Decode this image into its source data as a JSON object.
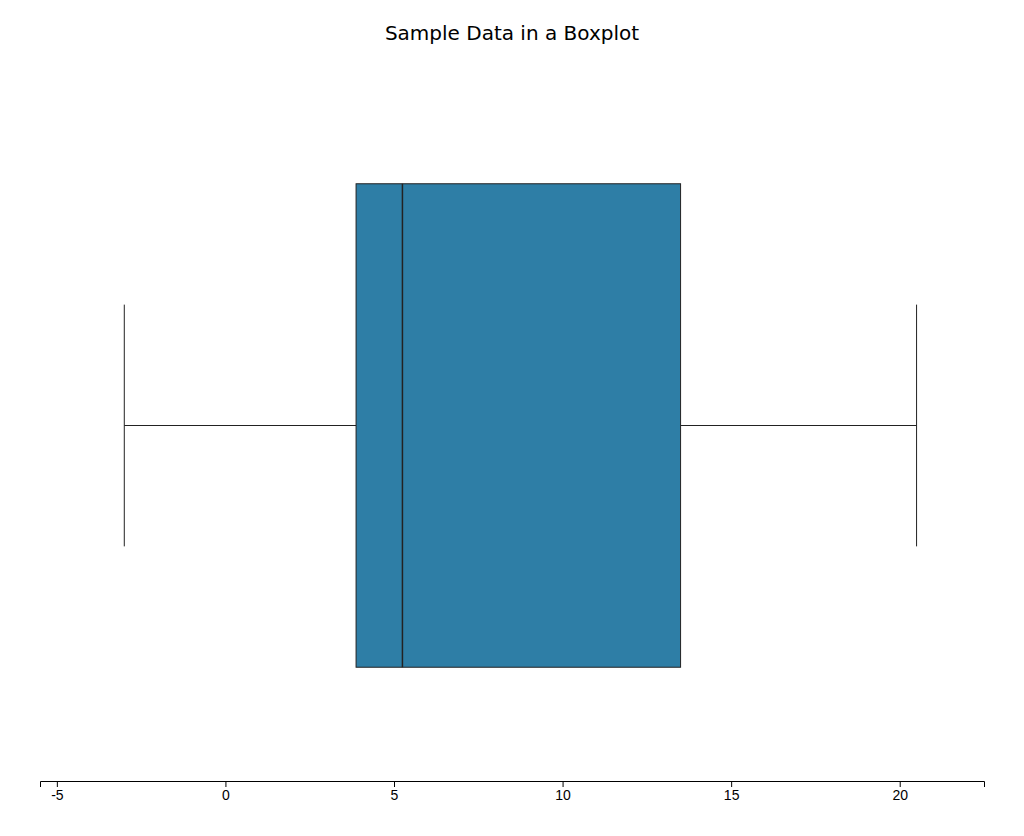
{
  "chart_data": {
    "type": "box",
    "title": "Sample Data in a Boxplot",
    "orientation": "horizontal",
    "color": "#2E7EA6",
    "boxes": [
      {
        "whislo": -3,
        "q1": 3.875,
        "median": 5.25,
        "q3": 13.5,
        "whishi": 20.5
      }
    ],
    "xlim": [
      -5.5,
      22.5
    ],
    "xticks": [
      -5,
      0,
      5,
      10,
      15,
      20
    ],
    "grid": false,
    "tick_labels": "x"
  }
}
